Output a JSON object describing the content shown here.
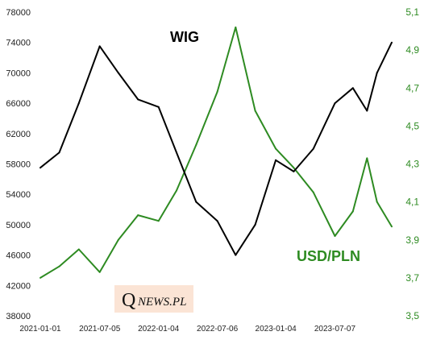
{
  "chart_data": {
    "type": "line",
    "title": "",
    "x": [
      "2021-01-01",
      "2021-03-01",
      "2021-05-01",
      "2021-07-05",
      "2021-09-01",
      "2021-11-01",
      "2022-01-04",
      "2022-03-01",
      "2022-05-01",
      "2022-07-06",
      "2022-09-01",
      "2022-11-01",
      "2023-01-04",
      "2023-03-01",
      "2023-05-01",
      "2023-07-07",
      "2023-09-01",
      "2023-10-15",
      "2023-11-15",
      "2023-12-31"
    ],
    "x_ticks": [
      "2021-01-01",
      "2021-07-05",
      "2022-01-04",
      "2022-07-06",
      "2023-01-04",
      "2023-07-07"
    ],
    "left_axis": {
      "ticks": [
        "78000",
        "74000",
        "70000",
        "66000",
        "62000",
        "58000",
        "54000",
        "50000",
        "46000",
        "42000",
        "38000"
      ],
      "ylim": [
        38000,
        78000
      ]
    },
    "right_axis": {
      "ticks": [
        "5,1",
        "4,9",
        "4,7",
        "4,5",
        "4,3",
        "4,1",
        "3,9",
        "3,7",
        "3,5"
      ],
      "ylim": [
        3.5,
        5.1
      ]
    },
    "series": [
      {
        "name": "WIG",
        "axis": "left",
        "color": "#000000",
        "values": [
          57500,
          59500,
          66000,
          73500,
          70000,
          66500,
          65500,
          59500,
          53000,
          50500,
          46000,
          50000,
          58500,
          57000,
          60000,
          66000,
          68000,
          65000,
          70000,
          74000
        ]
      },
      {
        "name": "USD/PLN",
        "axis": "right",
        "color": "#2e8b22",
        "values": [
          3.7,
          3.76,
          3.85,
          3.73,
          3.9,
          4.03,
          4.0,
          4.16,
          4.4,
          4.68,
          5.02,
          4.58,
          4.38,
          4.28,
          4.15,
          3.92,
          4.05,
          4.33,
          4.1,
          3.97
        ]
      }
    ],
    "grid": false,
    "legend": "none"
  },
  "labels": {
    "wig": "WIG",
    "usdpln": "USD/PLN"
  },
  "brand": {
    "q": "Q",
    "rest": "NEWS.PL"
  },
  "colors": {
    "wig": "#000000",
    "usdpln": "#2e8b22",
    "brand_bg": "#fbe4d5"
  }
}
